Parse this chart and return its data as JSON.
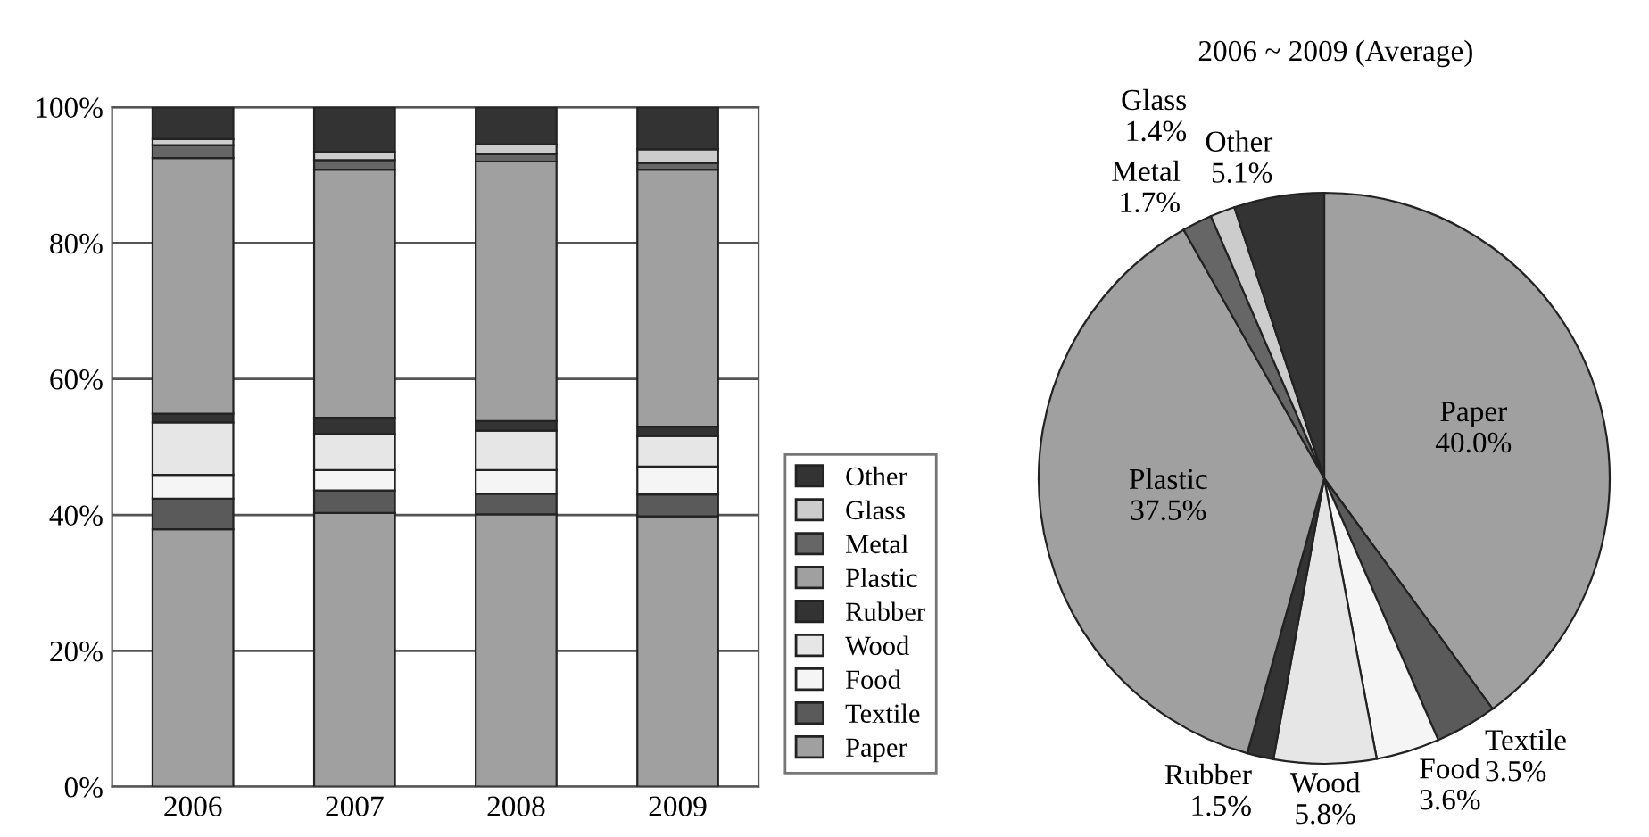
{
  "chart_data": [
    {
      "type": "bar",
      "stacked": true,
      "categories": [
        "2006",
        "2007",
        "2008",
        "2009"
      ],
      "ylim": [
        0,
        100
      ],
      "yticks": [
        {
          "value": 0,
          "label": "0%"
        },
        {
          "value": 20,
          "label": "20%"
        },
        {
          "value": 40,
          "label": "40%"
        },
        {
          "value": 60,
          "label": "60%"
        },
        {
          "value": 80,
          "label": "80%"
        },
        {
          "value": 100,
          "label": "100%"
        }
      ],
      "grid": "y",
      "legend": "bottom right",
      "series": [
        {
          "name": "Paper",
          "color": "#a0a0a0",
          "values": [
            37.9,
            40.3,
            40.1,
            39.8
          ]
        },
        {
          "name": "Textile",
          "color": "#5a5a5a",
          "values": [
            4.5,
            3.3,
            3.0,
            3.2
          ]
        },
        {
          "name": "Food",
          "color": "#f5f5f5",
          "values": [
            3.5,
            3.0,
            3.5,
            4.1
          ]
        },
        {
          "name": "Wood",
          "color": "#e6e6e6",
          "values": [
            7.7,
            5.3,
            5.8,
            4.5
          ]
        },
        {
          "name": "Rubber",
          "color": "#333333",
          "values": [
            1.3,
            2.4,
            1.4,
            1.4
          ]
        },
        {
          "name": "Plastic",
          "color": "#a0a0a0",
          "values": [
            37.6,
            36.5,
            38.2,
            37.8
          ]
        },
        {
          "name": "Metal",
          "color": "#666666",
          "values": [
            1.9,
            1.4,
            1.1,
            1.0
          ]
        },
        {
          "name": "Glass",
          "color": "#cccccc",
          "values": [
            0.9,
            1.2,
            1.4,
            2.0
          ]
        },
        {
          "name": "Other",
          "color": "#333333",
          "values": [
            4.7,
            6.6,
            5.5,
            6.2
          ]
        }
      ]
    },
    {
      "type": "pie",
      "title": "2006 ~ 2009 (Average)",
      "categories": [
        "Paper",
        "Textile",
        "Food",
        "Wood",
        "Rubber",
        "Plastic",
        "Metal",
        "Glass",
        "Other"
      ],
      "values": [
        40.0,
        3.5,
        3.6,
        5.8,
        1.5,
        37.5,
        1.7,
        1.4,
        5.1
      ],
      "value_labels": [
        "40.0%",
        "3.5%",
        "3.6%",
        "5.8%",
        "1.5%",
        "37.5%",
        "1.7%",
        "1.4%",
        "5.1%"
      ],
      "colors": [
        "#a0a0a0",
        "#5a5a5a",
        "#f5f5f5",
        "#e6e6e6",
        "#333333",
        "#a0a0a0",
        "#666666",
        "#cccccc",
        "#333333"
      ]
    }
  ]
}
